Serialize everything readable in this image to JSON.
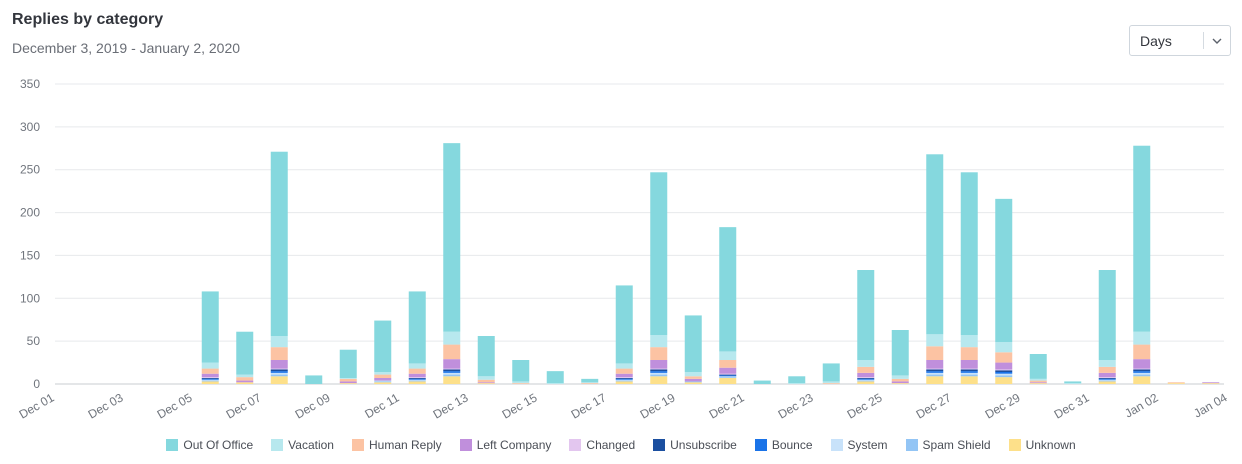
{
  "header": {
    "title": "Replies by category",
    "subtitle": "December 3, 2019 - January 2, 2020"
  },
  "period_select": {
    "value": "Days"
  },
  "chart_data": {
    "type": "bar",
    "stacked": true,
    "title": "",
    "xlabel": "",
    "ylabel": "",
    "ylim": [
      0,
      350
    ],
    "yticks": [
      0,
      50,
      100,
      150,
      200,
      250,
      300,
      350
    ],
    "grid": true,
    "legend_position": "bottom",
    "x_tick_labels": [
      "Dec 01",
      "Dec 03",
      "Dec 05",
      "Dec 07",
      "Dec 09",
      "Dec 11",
      "Dec 13",
      "Dec 15",
      "Dec 17",
      "Dec 19",
      "Dec 21",
      "Dec 23",
      "Dec 25",
      "Dec 27",
      "Dec 29",
      "Dec 31",
      "Jan 02",
      "Jan 04"
    ],
    "categories": [
      "Dec 01",
      "Dec 02",
      "Dec 03",
      "Dec 04",
      "Dec 05",
      "Dec 06",
      "Dec 07",
      "Dec 08",
      "Dec 09",
      "Dec 10",
      "Dec 11",
      "Dec 12",
      "Dec 13",
      "Dec 14",
      "Dec 15",
      "Dec 16",
      "Dec 17",
      "Dec 18",
      "Dec 19",
      "Dec 20",
      "Dec 21",
      "Dec 22",
      "Dec 23",
      "Dec 24",
      "Dec 25",
      "Dec 26",
      "Dec 27",
      "Dec 28",
      "Dec 29",
      "Dec 30",
      "Dec 31",
      "Jan 01",
      "Jan 02",
      "Jan 03",
      "Jan 04"
    ],
    "series": [
      {
        "name": "Unknown",
        "color": "#fde08a",
        "values": [
          0,
          0,
          0,
          0,
          3,
          2,
          9,
          0,
          1,
          2,
          3,
          9,
          1,
          0,
          0,
          0,
          3,
          9,
          2,
          7,
          0,
          0,
          0,
          3,
          1,
          9,
          9,
          8,
          1,
          0,
          3,
          9,
          1,
          1,
          0
        ]
      },
      {
        "name": "Spam Shield",
        "color": "#93c5f5",
        "values": [
          0,
          0,
          0,
          0,
          1,
          0,
          2,
          0,
          0,
          1,
          1,
          2,
          0,
          0,
          0,
          0,
          1,
          2,
          1,
          1,
          0,
          0,
          0,
          1,
          0,
          2,
          2,
          2,
          0,
          0,
          1,
          2,
          0,
          0,
          0
        ]
      },
      {
        "name": "System",
        "color": "#c8e2fa",
        "values": [
          0,
          0,
          0,
          0,
          1,
          0,
          2,
          0,
          0,
          1,
          1,
          2,
          0,
          0,
          0,
          0,
          1,
          2,
          0,
          1,
          0,
          0,
          0,
          1,
          0,
          2,
          2,
          2,
          0,
          0,
          1,
          2,
          0,
          0,
          0
        ]
      },
      {
        "name": "Bounce",
        "color": "#1a73e8",
        "values": [
          0,
          0,
          0,
          0,
          1,
          0,
          2,
          0,
          0,
          0,
          1,
          2,
          0,
          0,
          0,
          0,
          1,
          2,
          0,
          1,
          0,
          0,
          0,
          1,
          0,
          2,
          2,
          2,
          0,
          0,
          1,
          2,
          0,
          0,
          0
        ]
      },
      {
        "name": "Unsubscribe",
        "color": "#1b4fa0",
        "values": [
          0,
          0,
          0,
          0,
          1,
          0,
          2,
          0,
          0,
          0,
          1,
          2,
          0,
          0,
          0,
          0,
          1,
          2,
          0,
          1,
          0,
          0,
          0,
          1,
          0,
          2,
          2,
          2,
          0,
          0,
          1,
          2,
          0,
          0,
          0
        ]
      },
      {
        "name": "Changed",
        "color": "#e3c6ef",
        "values": [
          0,
          0,
          0,
          0,
          1,
          0,
          1,
          0,
          0,
          0,
          1,
          1,
          0,
          0,
          0,
          0,
          1,
          1,
          0,
          1,
          0,
          0,
          0,
          1,
          0,
          1,
          1,
          1,
          0,
          0,
          1,
          1,
          0,
          0,
          0
        ]
      },
      {
        "name": "Left Company",
        "color": "#c08fdc",
        "values": [
          0,
          0,
          0,
          0,
          4,
          2,
          10,
          0,
          2,
          3,
          4,
          11,
          1,
          0,
          0,
          0,
          4,
          10,
          3,
          7,
          0,
          0,
          0,
          5,
          2,
          10,
          10,
          8,
          1,
          0,
          5,
          11,
          0,
          1,
          0
        ]
      },
      {
        "name": "Human Reply",
        "color": "#fcc3a3",
        "values": [
          0,
          0,
          0,
          0,
          6,
          4,
          15,
          0,
          3,
          4,
          6,
          17,
          3,
          1,
          0,
          1,
          6,
          15,
          3,
          9,
          0,
          0,
          1,
          7,
          3,
          16,
          15,
          12,
          2,
          0,
          7,
          17,
          1,
          0,
          0
        ]
      },
      {
        "name": "Vacation",
        "color": "#b7e8ee",
        "values": [
          0,
          0,
          0,
          0,
          7,
          3,
          13,
          0,
          1,
          3,
          6,
          15,
          4,
          2,
          1,
          1,
          6,
          14,
          5,
          10,
          0,
          1,
          2,
          8,
          4,
          14,
          14,
          12,
          2,
          1,
          8,
          15,
          0,
          0,
          0
        ]
      },
      {
        "name": "Out Of Office",
        "color": "#85d8de",
        "values": [
          0,
          0,
          0,
          0,
          83,
          50,
          215,
          10,
          33,
          60,
          84,
          220,
          47,
          25,
          14,
          4,
          91,
          190,
          66,
          145,
          4,
          8,
          21,
          105,
          53,
          210,
          190,
          167,
          29,
          2,
          105,
          217,
          0,
          0,
          0
        ]
      }
    ],
    "legend_order": [
      "Out Of Office",
      "Vacation",
      "Human Reply",
      "Left Company",
      "Changed",
      "Unsubscribe",
      "Bounce",
      "System",
      "Spam Shield",
      "Unknown"
    ]
  }
}
